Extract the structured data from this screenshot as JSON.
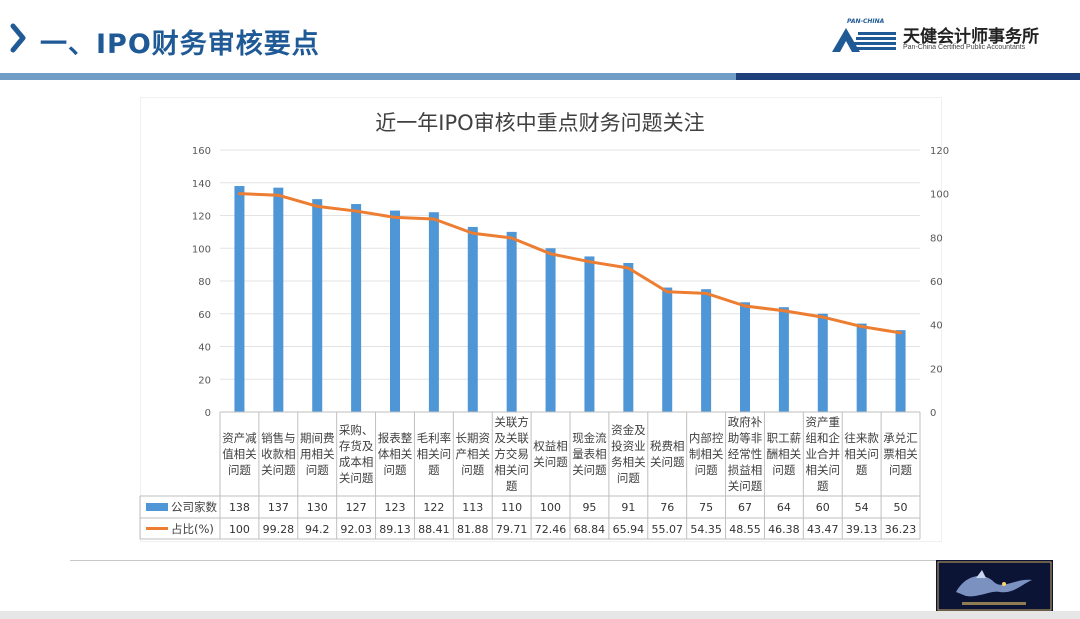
{
  "header": {
    "chevron_icon": "chevron-right-icon",
    "title": "一、IPO财务审核要点",
    "firm_name": "天健会计师事务所",
    "firm_english": "Pan-China Certified Public Accountants",
    "logo_text": "PAN-CHINA",
    "colors": {
      "title": "#1f5a96",
      "accent_light": "#6f9dc6",
      "accent_dark": "#1f3f7a"
    }
  },
  "chart_data": {
    "type": "bar",
    "title": "近一年IPO审核中重点财务问题关注",
    "categories": [
      "资产减值相关问题",
      "销售与收款相关问题",
      "期间费用相关问题",
      "采购、存货及成本相关问题",
      "报表整体相关问题",
      "毛利率相关问题",
      "长期资产相关问题",
      "关联方及关联方交易相关问题",
      "权益相关问题",
      "现金流量表相关问题",
      "资金及投资业务相关问题",
      "税费相关问题",
      "内部控制相关问题",
      "政府补助等非经常性损益相关问题",
      "职工薪酬相关问题",
      "资产重组和企业合并相关问题",
      "往来款相关问题",
      "承兑汇票相关问题"
    ],
    "category_lines": [
      [
        "资产减",
        "值相关",
        "问题"
      ],
      [
        "销售与",
        "收款相",
        "关问题"
      ],
      [
        "期间费",
        "用相关",
        "问题"
      ],
      [
        "采购、",
        "存货及",
        "成本相",
        "关问题"
      ],
      [
        "报表整",
        "体相关",
        "问题"
      ],
      [
        "毛利率",
        "相关问",
        "题"
      ],
      [
        "长期资",
        "产相关",
        "问题"
      ],
      [
        "关联方",
        "及关联",
        "方交易",
        "相关问",
        "题"
      ],
      [
        "权益相",
        "关问题"
      ],
      [
        "现金流",
        "量表相",
        "关问题"
      ],
      [
        "资金及",
        "投资业",
        "务相关",
        "问题"
      ],
      [
        "税费相",
        "关问题"
      ],
      [
        "内部控",
        "制相关",
        "问题"
      ],
      [
        "政府补",
        "助等非",
        "经常性",
        "损益相",
        "关问题"
      ],
      [
        "职工薪",
        "酬相关",
        "问题"
      ],
      [
        "资产重",
        "组和企",
        "业合并",
        "相关问",
        "题"
      ],
      [
        "往来款",
        "相关问",
        "题"
      ],
      [
        "承兑汇",
        "票相关",
        "问题"
      ]
    ],
    "series": [
      {
        "name": "公司家数",
        "type": "bar",
        "axis": "left",
        "color": "#4e96d6",
        "values": [
          138,
          137,
          130,
          127,
          123,
          122,
          113,
          110,
          100,
          95,
          91,
          76,
          75,
          67,
          64,
          60,
          54,
          50
        ],
        "labels": [
          "138",
          "137",
          "130",
          "127",
          "123",
          "122",
          "113",
          "110",
          "100",
          "95",
          "91",
          "76",
          "75",
          "67",
          "64",
          "60",
          "54",
          "50"
        ]
      },
      {
        "name": "占比(%)",
        "type": "line",
        "axis": "right",
        "color": "#ed7d31",
        "values": [
          100,
          99.28,
          94.2,
          92.03,
          89.13,
          88.41,
          81.88,
          79.71,
          72.46,
          68.84,
          65.94,
          55.07,
          54.35,
          48.55,
          46.38,
          43.47,
          39.13,
          36.23
        ],
        "labels": [
          "100",
          "99.28",
          "94.2",
          "92.03",
          "89.13",
          "88.41",
          "81.88",
          "79.71",
          "72.46",
          "68.84",
          "65.94",
          "55.07",
          "54.35",
          "48.55",
          "46.38",
          "43.47",
          "39.13",
          "36.23"
        ]
      }
    ],
    "y_left": {
      "min": 0,
      "max": 160,
      "ticks": [
        "0",
        "20",
        "40",
        "60",
        "80",
        "100",
        "120",
        "140",
        "160"
      ]
    },
    "y_right": {
      "min": 0,
      "max": 120,
      "ticks": [
        "0",
        "20",
        "40",
        "60",
        "80",
        "100",
        "120"
      ]
    },
    "grid": "horizontal",
    "legend": "data-table"
  },
  "badge": {
    "icon": "dragon-logo-icon"
  }
}
